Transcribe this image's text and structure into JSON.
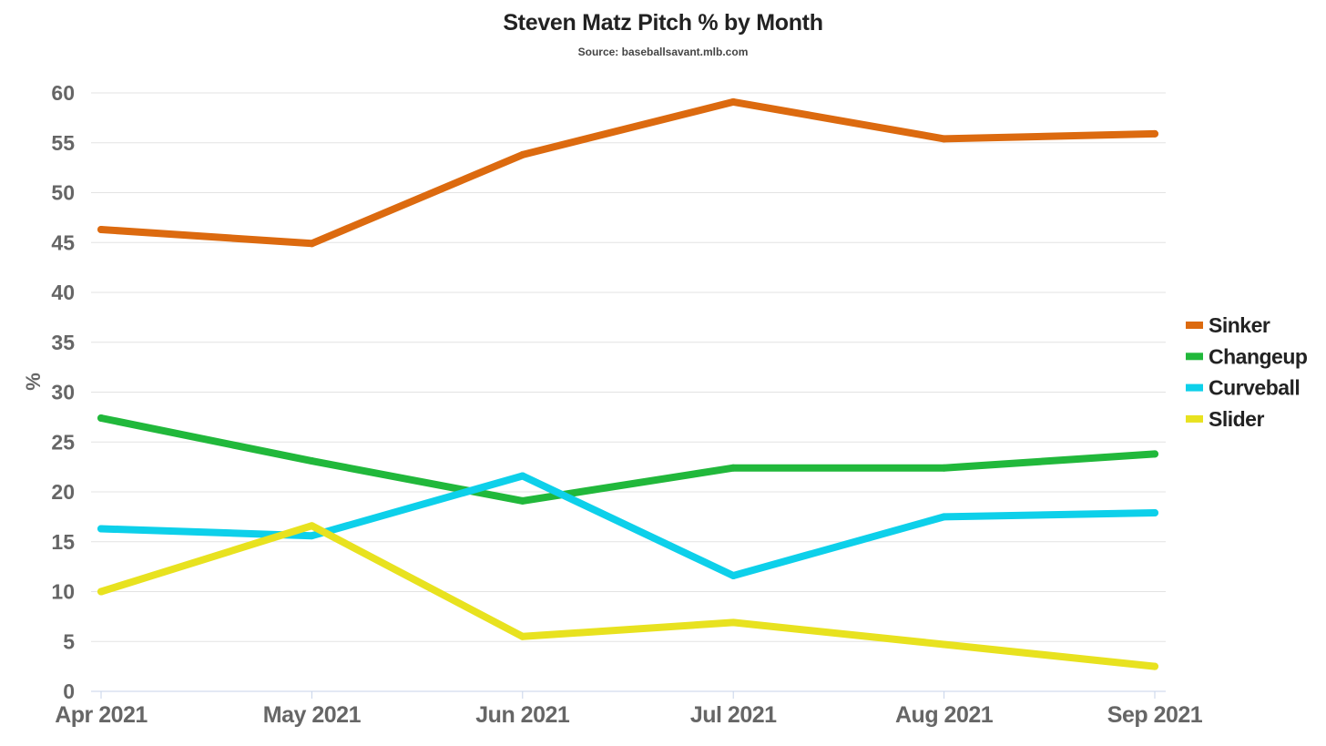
{
  "chart_data": {
    "type": "line",
    "title": "Steven Matz Pitch % by Month",
    "subtitle": "Source: baseballsavant.mlb.com",
    "xlabel": "",
    "ylabel": "%",
    "ylim": [
      0,
      60
    ],
    "yticks": [
      "0",
      "5",
      "10",
      "15",
      "20",
      "25",
      "30",
      "35",
      "40",
      "45",
      "50",
      "55",
      "60"
    ],
    "categories": [
      "Apr 2021",
      "May 2021",
      "Jun 2021",
      "Jul 2021",
      "Aug 2021",
      "Sep 2021"
    ],
    "grid": true,
    "legend_position": "right",
    "series": [
      {
        "name": "Sinker",
        "color": "#dc6a0f",
        "values": [
          46.3,
          44.9,
          53.8,
          59.1,
          55.4,
          55.9
        ]
      },
      {
        "name": "Changeup",
        "color": "#21b83b",
        "values": [
          27.4,
          23.1,
          19.1,
          22.4,
          22.4,
          23.8
        ]
      },
      {
        "name": "Curveball",
        "color": "#0dd0ea",
        "values": [
          16.3,
          15.6,
          21.6,
          11.6,
          17.5,
          17.9
        ]
      },
      {
        "name": "Slider",
        "color": "#e8e21f",
        "values": [
          10.0,
          16.6,
          5.5,
          6.9,
          4.7,
          2.5
        ]
      }
    ]
  }
}
